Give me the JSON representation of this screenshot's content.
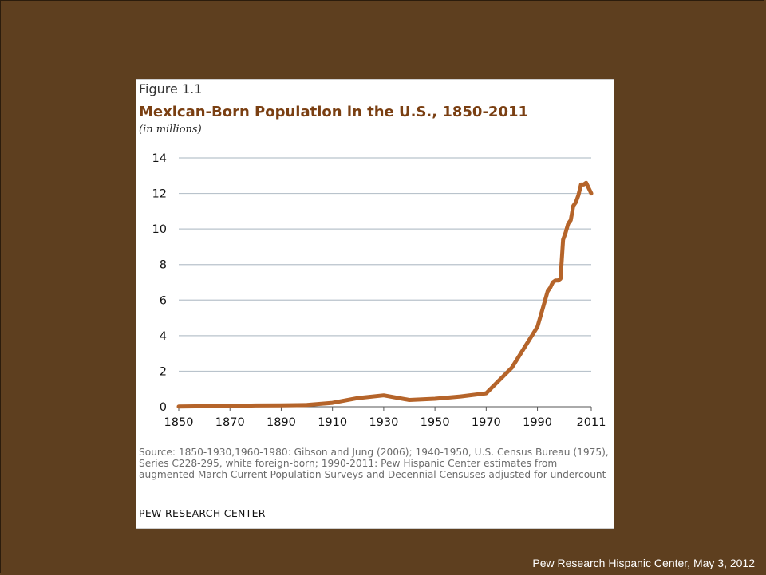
{
  "slide": {
    "footer": "Pew Research Hispanic Center, May 3, 2012"
  },
  "figure": {
    "label": "Figure 1.1",
    "title": "Mexican-Born Population in the U.S., 1850-2011",
    "subtitle": "(in millions)",
    "source": "Source: 1850-1930,1960-1980: Gibson and Jung (2006); 1940-1950, U.S. Census Bureau (1975), Series C228-295, white foreign-born; 1990-2011: Pew Hispanic Center estimates from augmented March Current Population Surveys and Decennial Censuses adjusted for undercount",
    "brand": "PEW RESEARCH CENTER"
  },
  "colors": {
    "background": "#5e3f1f",
    "line": "#b5642a",
    "title": "#7a3f12",
    "grid": "#b9c3cc"
  },
  "chart_data": {
    "type": "line",
    "title": "Mexican-Born Population in the U.S., 1850-2011",
    "subtitle": "(in millions)",
    "xlabel": "",
    "ylabel": "",
    "xlim": [
      1850,
      2011
    ],
    "ylim": [
      0,
      14
    ],
    "x_ticks": [
      1850,
      1870,
      1890,
      1910,
      1930,
      1950,
      1970,
      1990,
      2011
    ],
    "y_ticks": [
      0,
      2,
      4,
      6,
      8,
      10,
      12,
      14
    ],
    "grid": true,
    "series": [
      {
        "x": [
          1850,
          1860,
          1870,
          1880,
          1890,
          1900,
          1910,
          1920,
          1930,
          1940,
          1950,
          1960,
          1970,
          1980,
          1990,
          1994,
          1995,
          1996,
          1997,
          1998,
          1999,
          2000,
          2001,
          2002,
          2003,
          2004,
          2005,
          2006,
          2007,
          2008,
          2009,
          2010,
          2011
        ],
        "values": [
          0.01,
          0.03,
          0.04,
          0.07,
          0.08,
          0.1,
          0.22,
          0.49,
          0.64,
          0.38,
          0.45,
          0.58,
          0.76,
          2.2,
          4.5,
          6.5,
          6.7,
          7.0,
          7.1,
          7.1,
          7.2,
          9.4,
          9.8,
          10.3,
          10.5,
          11.3,
          11.5,
          11.9,
          12.5,
          12.5,
          12.6,
          12.3,
          12.0
        ]
      }
    ]
  }
}
